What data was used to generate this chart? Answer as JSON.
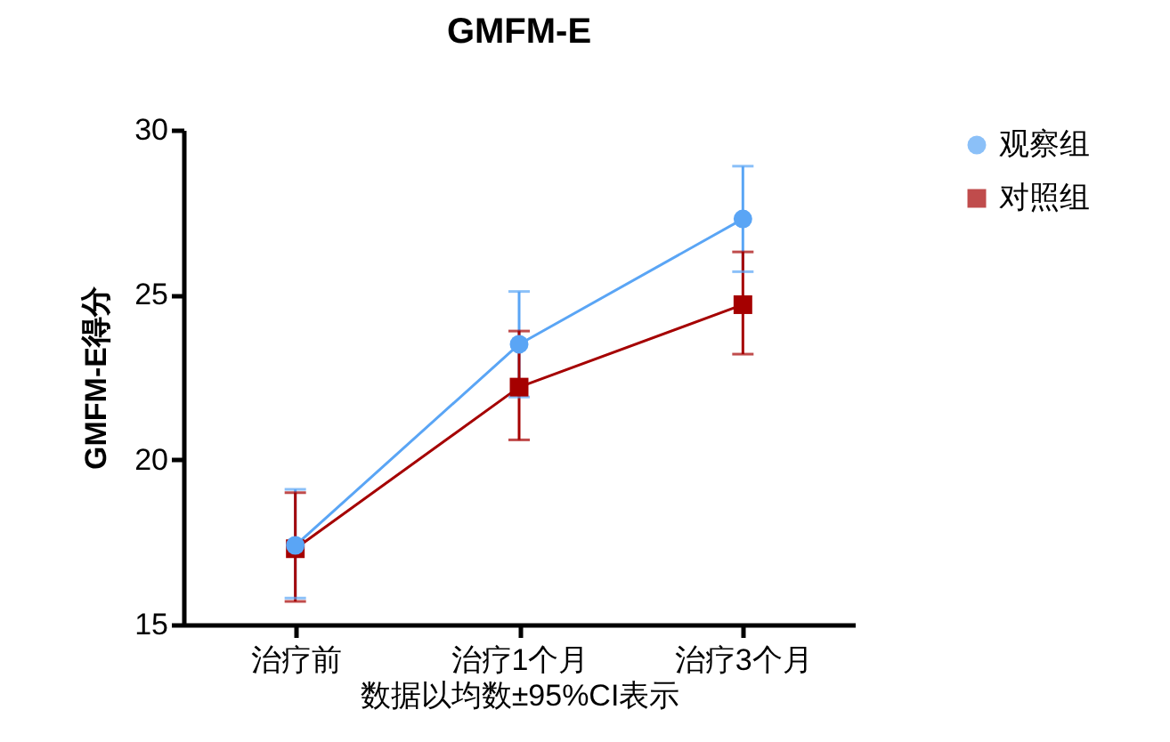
{
  "chart_data": {
    "type": "line",
    "title": "GMFM-E",
    "xlabel": "数据以均数±95%CI表示",
    "ylabel": "GMFM-E得分",
    "categories": [
      "治疗前",
      "治疗1个月",
      "治疗3个月"
    ],
    "series": [
      {
        "name": "观察组",
        "color": "#5aa5f5",
        "marker": "circle",
        "values": [
          17.4,
          23.5,
          27.3
        ],
        "errors": [
          [
            15.8,
            19.1
          ],
          [
            21.9,
            25.1
          ],
          [
            25.7,
            28.9
          ]
        ]
      },
      {
        "name": "对照组",
        "color": "#a50000",
        "marker": "square",
        "values": [
          17.3,
          22.2,
          24.7
        ],
        "errors": [
          [
            15.7,
            19.0
          ],
          [
            20.6,
            23.9
          ],
          [
            23.2,
            26.3
          ]
        ]
      }
    ],
    "ylim": [
      15,
      30
    ],
    "yticks": [
      15,
      20,
      25,
      30
    ],
    "legend": "top right"
  }
}
